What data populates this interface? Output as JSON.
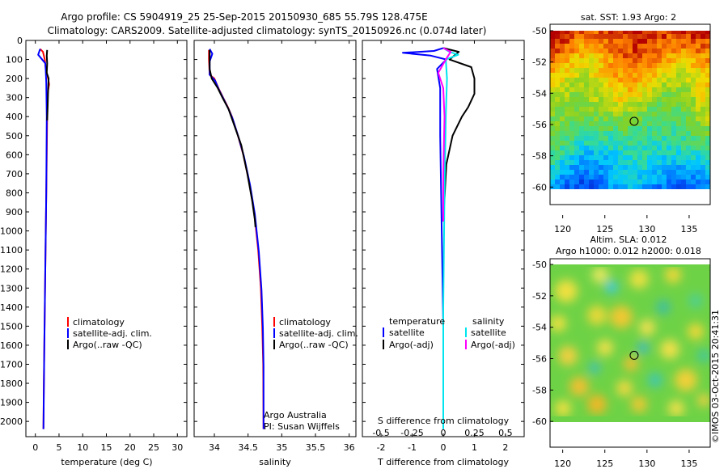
{
  "header": {
    "line1": "Argo profile: CS 5904919_25 25-Sep-2015 20150930_685 55.79S 128.475E",
    "line2": "Climatology: CARS2009. Satellite-adjusted climatology: synTS_20150926.nc (0.074d later)"
  },
  "depth_ticks": [
    "0",
    "100",
    "200",
    "300",
    "400",
    "500",
    "600",
    "700",
    "800",
    "900",
    "1000",
    "1100",
    "1200",
    "1300",
    "1400",
    "1500",
    "1600",
    "1700",
    "1800",
    "1900",
    "2000"
  ],
  "chart_data": [
    {
      "type": "line",
      "id": "temperature",
      "xlabel": "temperature (deg C)",
      "xlim": [
        -2,
        32
      ],
      "ylim": [
        2080,
        0
      ],
      "xticks": [
        "0",
        "5",
        "10",
        "15",
        "20",
        "25",
        "30"
      ],
      "legend": [
        "climatology",
        "satellite-adj. clim.",
        "Argo(..raw -QC)"
      ],
      "series": [
        {
          "name": "climatology",
          "color": "#ff0000",
          "points": [
            [
              1.0,
              45
            ],
            [
              1.6,
              60
            ],
            [
              2.0,
              100
            ],
            [
              2.2,
              150
            ],
            [
              2.7,
              200
            ],
            [
              2.9,
              230
            ],
            [
              2.6,
              280
            ],
            [
              2.5,
              400
            ],
            [
              2.4,
              600
            ],
            [
              2.3,
              800
            ],
            [
              2.2,
              1000
            ],
            [
              2.1,
              1200
            ],
            [
              2.0,
              1400
            ],
            [
              1.9,
              1600
            ],
            [
              1.8,
              1800
            ],
            [
              1.7,
              2040
            ]
          ]
        },
        {
          "name": "satellite-adj. clim.",
          "color": "#0000ff",
          "points": [
            [
              1.0,
              45
            ],
            [
              0.6,
              75
            ],
            [
              2.1,
              120
            ],
            [
              2.2,
              160
            ],
            [
              2.3,
              220
            ],
            [
              2.4,
              400
            ],
            [
              2.3,
              800
            ],
            [
              2.1,
              1200
            ],
            [
              1.9,
              1600
            ],
            [
              1.7,
              2040
            ]
          ]
        },
        {
          "name": "Argo(..raw -QC)",
          "color": "#000000",
          "points": [
            [
              2.5,
              50
            ],
            [
              2.4,
              80
            ],
            [
              2.5,
              120
            ],
            [
              2.4,
              170
            ],
            [
              2.8,
              200
            ],
            [
              2.7,
              260
            ],
            [
              2.6,
              350
            ],
            [
              2.5,
              420
            ]
          ]
        }
      ]
    },
    {
      "type": "line",
      "id": "salinity",
      "xlabel": "salinity",
      "xlim": [
        33.7,
        36.1
      ],
      "ylim": [
        2080,
        0
      ],
      "xticks": [
        "34",
        "34.5",
        "35",
        "35.5",
        "36"
      ],
      "legend": [
        "climatology",
        "satellite-adj. clim.",
        "Argo(..raw -QC)"
      ],
      "annotation": [
        "Argo Australia",
        "PI: Susan Wijffels"
      ],
      "series": [
        {
          "name": "climatology",
          "color": "#ff0000",
          "points": [
            [
              33.92,
              50
            ],
            [
              33.92,
              100
            ],
            [
              33.93,
              180
            ],
            [
              34.0,
              200
            ],
            [
              34.06,
              250
            ],
            [
              34.13,
              300
            ],
            [
              34.2,
              350
            ],
            [
              34.26,
              400
            ],
            [
              34.35,
              500
            ],
            [
              34.43,
              600
            ],
            [
              34.52,
              750
            ],
            [
              34.59,
              900
            ],
            [
              34.65,
              1100
            ],
            [
              34.69,
              1300
            ],
            [
              34.71,
              1500
            ],
            [
              34.725,
              1700
            ],
            [
              34.73,
              2040
            ]
          ]
        },
        {
          "name": "satellite-adj. clim.",
          "color": "#0000ff",
          "points": [
            [
              33.93,
              45
            ],
            [
              33.97,
              70
            ],
            [
              33.93,
              110
            ],
            [
              33.93,
              180
            ],
            [
              34.01,
              210
            ],
            [
              34.07,
              260
            ],
            [
              34.14,
              310
            ],
            [
              34.21,
              360
            ],
            [
              34.27,
              410
            ],
            [
              34.36,
              510
            ],
            [
              34.44,
              610
            ],
            [
              34.53,
              760
            ],
            [
              34.6,
              910
            ],
            [
              34.66,
              1110
            ],
            [
              34.7,
              1310
            ],
            [
              34.72,
              1510
            ],
            [
              34.73,
              1710
            ],
            [
              34.73,
              2040
            ]
          ]
        },
        {
          "name": "Argo(..raw -QC)",
          "color": "#000000",
          "points": [
            [
              33.93,
              50
            ],
            [
              33.93,
              150
            ],
            [
              33.96,
              200
            ],
            [
              34.05,
              250
            ],
            [
              34.12,
              300
            ],
            [
              34.21,
              360
            ],
            [
              34.3,
              450
            ],
            [
              34.4,
              550
            ],
            [
              34.49,
              700
            ],
            [
              34.56,
              840
            ],
            [
              34.6,
              940
            ],
            [
              34.61,
              980
            ]
          ]
        }
      ]
    },
    {
      "type": "line",
      "id": "differences",
      "xlabel": "T difference from climatology",
      "xlabel_top": "S difference from climatology",
      "xlim": [
        -2.6,
        2.6
      ],
      "xlim_top": [
        -0.65,
        0.65
      ],
      "ylim": [
        2080,
        0
      ],
      "xticks": [
        "-2",
        "-1",
        "0",
        "1",
        "2"
      ],
      "xticks_top": [
        "-0.5",
        "-0.25",
        "0",
        "0.25",
        "0.5"
      ],
      "legend_temperature_title": "temperature",
      "legend_salinity_title": "salinity",
      "legend": [
        "satellite",
        "Argo(-adj)",
        "satellite",
        "Argo(-adj)"
      ],
      "series": [
        {
          "name": "temperature satellite",
          "color": "#0000ff",
          "points": [
            [
              0,
              40
            ],
            [
              -0.3,
              55
            ],
            [
              -1.3,
              65
            ],
            [
              -0.4,
              80
            ],
            [
              0.1,
              100
            ],
            [
              -0.2,
              150
            ],
            [
              -0.1,
              250
            ],
            [
              -0.1,
              500
            ],
            [
              -0.05,
              1000
            ],
            [
              0,
              1500
            ],
            [
              0,
              2040
            ]
          ]
        },
        {
          "name": "temperature Argo(-adj)",
          "color": "#000000",
          "points": [
            [
              0,
              40
            ],
            [
              0.5,
              60
            ],
            [
              0.2,
              100
            ],
            [
              0.9,
              140
            ],
            [
              1.0,
              200
            ],
            [
              1.0,
              280
            ],
            [
              0.8,
              350
            ],
            [
              0.6,
              400
            ],
            [
              0.3,
              500
            ],
            [
              0.1,
              650
            ],
            [
              0.05,
              800
            ],
            [
              0.0,
              950
            ]
          ]
        },
        {
          "name": "salinity satellite",
          "color": "#00e5ee",
          "points": [
            [
              0,
              40
            ],
            [
              0.05,
              60
            ],
            [
              0.12,
              75
            ],
            [
              0.02,
              100
            ],
            [
              0.03,
              200
            ],
            [
              0.02,
              400
            ],
            [
              0.01,
              800
            ],
            [
              0,
              1400
            ],
            [
              0,
              2040
            ]
          ]
        },
        {
          "name": "salinity Argo(-adj)",
          "color": "#ff00ff",
          "points": [
            [
              0,
              40
            ],
            [
              0.06,
              60
            ],
            [
              0.02,
              100
            ],
            [
              -0.04,
              170
            ],
            [
              0.0,
              250
            ],
            [
              0.01,
              400
            ],
            [
              0.0,
              700
            ],
            [
              0.0,
              950
            ]
          ]
        }
      ]
    },
    {
      "type": "heatmap",
      "id": "sst-map",
      "title": "sat. SST: 1.93 Argo: 2",
      "xticks": [
        "120",
        "125",
        "130",
        "135"
      ],
      "yticks": [
        "-50",
        "-52",
        "-54",
        "-56",
        "-58",
        "-60"
      ],
      "xlim": [
        118.5,
        137.5
      ],
      "ylim": [
        -62,
        -50
      ],
      "marker": {
        "lon": 128.475,
        "lat": -55.79
      }
    },
    {
      "type": "heatmap",
      "id": "sla-map",
      "title_line1": "Altim. SLA: 0.012",
      "title_line2": "Argo h1000: 0.012 h2000: 0.018",
      "xticks": [
        "120",
        "125",
        "130",
        "135"
      ],
      "yticks": [
        "-50",
        "-52",
        "-54",
        "-56",
        "-58",
        "-60"
      ],
      "xlim": [
        118.5,
        137.5
      ],
      "ylim": [
        -62,
        -50
      ],
      "marker": {
        "lon": 128.475,
        "lat": -55.79
      }
    }
  ],
  "watermark": "©IMOS 03-Oct-2015 20:41:31",
  "colors": {
    "climatology": "#ff0000",
    "satellite_adj": "#0000ff",
    "argo": "#000000",
    "salinity_satellite": "#00e5ee",
    "salinity_argo": "#ff00ff"
  }
}
